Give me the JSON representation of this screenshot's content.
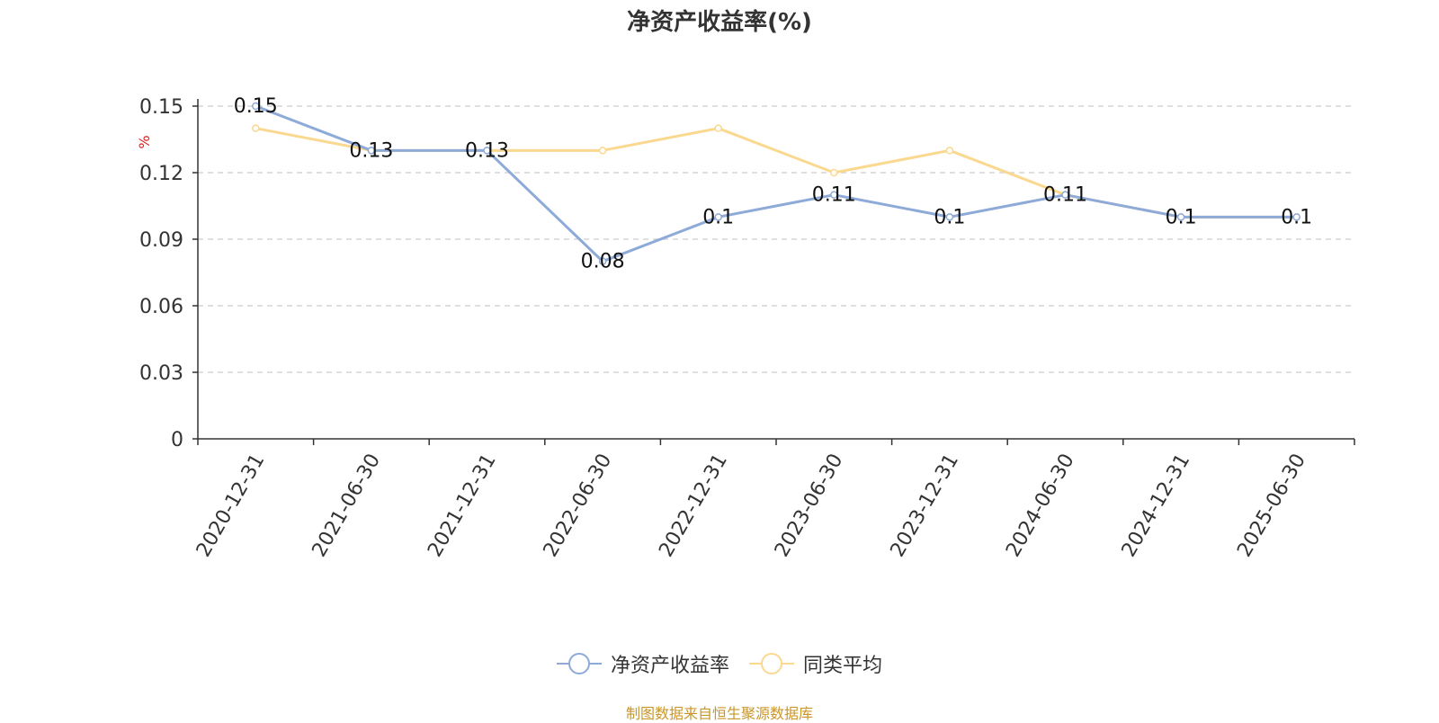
{
  "title": "净资产收益率(%)",
  "source_note": "制图数据来自恒生聚源数据库",
  "colors": {
    "series_1": "#8eaad8",
    "series_2": "#fad88f",
    "unit_label": "#e02020",
    "axis": "#333333",
    "grid": "#cccccc"
  },
  "chart_data": {
    "type": "line",
    "title": "净资产收益率(%)",
    "ylabel": "%",
    "xlabel": "",
    "ylim": [
      0,
      0.15
    ],
    "yticks": [
      "0",
      "0.03",
      "0.06",
      "0.09",
      "0.12",
      "0.15"
    ],
    "ytick_values": [
      0,
      0.03,
      0.06,
      0.09,
      0.12,
      0.15
    ],
    "grid": true,
    "legend_position": "bottom",
    "categories": [
      "2020-12-31",
      "2021-06-30",
      "2021-12-31",
      "2022-06-30",
      "2022-12-31",
      "2023-06-30",
      "2023-12-31",
      "2024-06-30",
      "2024-12-31",
      "2025-06-30"
    ],
    "series": [
      {
        "name": "净资产收益率",
        "values": [
          0.15,
          0.13,
          0.13,
          0.08,
          0.1,
          0.11,
          0.1,
          0.11,
          0.1,
          0.1
        ],
        "labels": [
          "0.15",
          "0.13",
          "0.13",
          "0.08",
          "0.1",
          "0.11",
          "0.1",
          "0.11",
          "0.1",
          "0.1"
        ]
      },
      {
        "name": "同类平均",
        "values": [
          0.14,
          0.13,
          0.13,
          0.13,
          0.14,
          0.12,
          0.13,
          0.11,
          0.1,
          0.1
        ]
      }
    ]
  }
}
